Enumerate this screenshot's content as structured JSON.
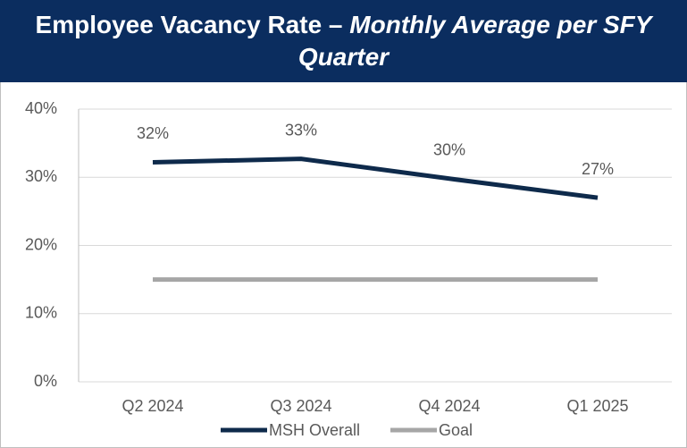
{
  "chart_data": {
    "type": "line",
    "title": "Employee Vacancy Rate –",
    "subtitle": "Monthly Average per SFY Quarter",
    "categories": [
      "Q2 2024",
      "Q3 2024",
      "Q4 2024",
      "Q1 2025"
    ],
    "series": [
      {
        "name": "MSH Overall",
        "color": "#0e2a4b",
        "values": [
          32.2,
          32.7,
          29.8,
          27.0
        ],
        "value_labels": [
          "32%",
          "33%",
          "30%",
          "27%"
        ]
      },
      {
        "name": "Goal",
        "color": "#a6a6a6",
        "values": [
          15,
          15,
          15,
          15
        ]
      }
    ],
    "ylim": [
      0,
      40
    ],
    "yticks": [
      {
        "value": 0,
        "label": "0%"
      },
      {
        "value": 10,
        "label": "10%"
      },
      {
        "value": 20,
        "label": "20%"
      },
      {
        "value": 30,
        "label": "30%"
      },
      {
        "value": 40,
        "label": "40%"
      }
    ],
    "grid": true
  }
}
